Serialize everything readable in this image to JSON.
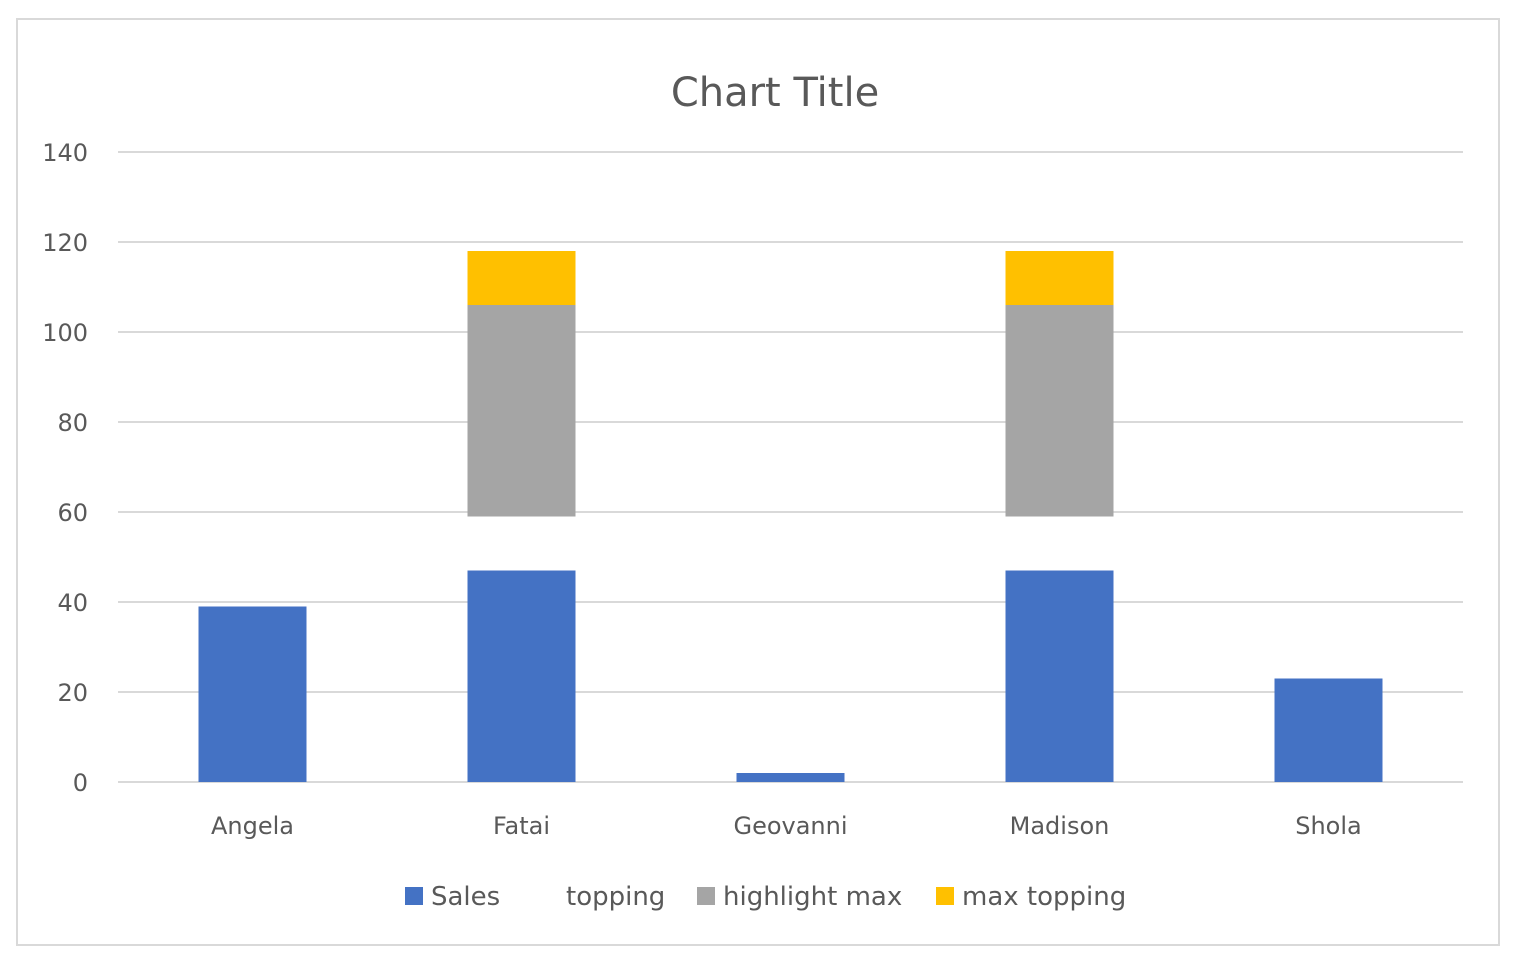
{
  "chart_data": {
    "type": "bar",
    "stacked": true,
    "title": "Chart Title",
    "xlabel": "",
    "ylabel": "",
    "categories": [
      "Angela",
      "Fatai",
      "Geovanni",
      "Madison",
      "Shola"
    ],
    "ylim": [
      0,
      140
    ],
    "yticks": [
      0,
      20,
      40,
      60,
      80,
      100,
      120,
      140
    ],
    "grid": true,
    "legend_position": "bottom",
    "series": [
      {
        "name": "Sales",
        "color": "#4472C4",
        "values": [
          39,
          47,
          2,
          47,
          23
        ]
      },
      {
        "name": "topping",
        "color": "transparent",
        "values": [
          0,
          12,
          0,
          12,
          0
        ]
      },
      {
        "name": "highlight max",
        "color": "#A5A5A5",
        "values": [
          0,
          47,
          0,
          47,
          0
        ]
      },
      {
        "name": "max topping",
        "color": "#FFC000",
        "values": [
          0,
          12,
          0,
          12,
          0
        ]
      }
    ]
  }
}
